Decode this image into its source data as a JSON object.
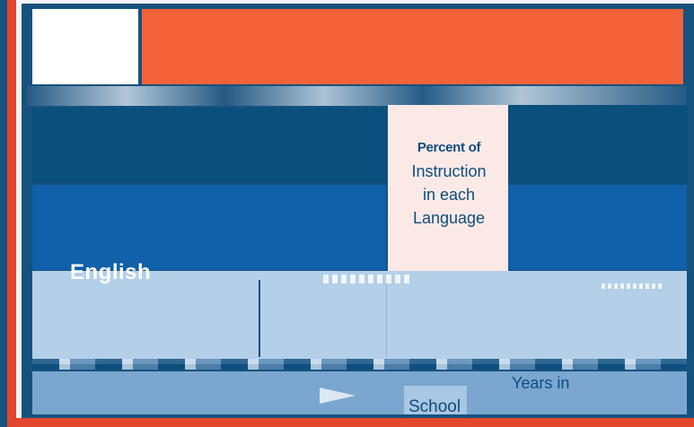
{
  "diagram": {
    "center_label_line1": "Percent of",
    "center_label_line2": "Instruction",
    "center_label_line3": "in each",
    "center_label_line4": "Language",
    "english_label": "English",
    "years_label": "Years in",
    "school_label": "School"
  },
  "colors": {
    "orange": "#f4623a",
    "navy": "#0b4f7d",
    "blue": "#1060aa",
    "light_blue": "#b4cfe8",
    "frame_red": "#e1472c",
    "label_bg": "#fbe9e6"
  }
}
